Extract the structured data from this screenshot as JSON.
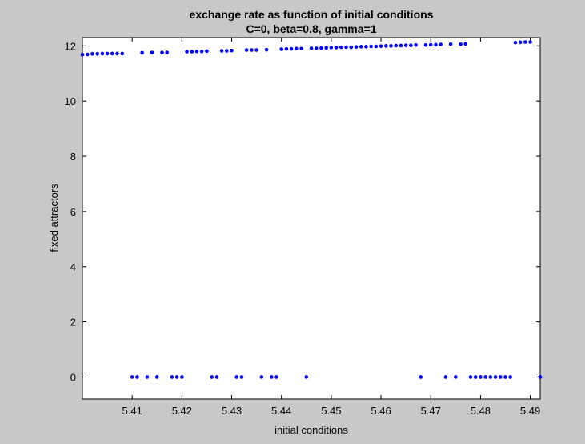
{
  "chart_data": {
    "type": "scatter",
    "title": [
      "exchange rate as function of initial conditions",
      "C=0, beta=0.8, gamma=1"
    ],
    "xlabel": "initial conditions",
    "ylabel": "fixed attractors",
    "xlim": [
      5.4,
      5.492
    ],
    "ylim": [
      -0.8,
      12.3
    ],
    "xticks": [
      5.41,
      5.42,
      5.43,
      5.44,
      5.45,
      5.46,
      5.47,
      5.48,
      5.49
    ],
    "yticks": [
      0,
      2,
      4,
      6,
      8,
      10,
      12
    ],
    "grid": false,
    "marker_color": "#0000ff",
    "series": [
      {
        "points": [
          [
            5.4,
            11.68
          ],
          [
            5.401,
            11.69
          ],
          [
            5.402,
            11.71
          ],
          [
            5.403,
            11.71
          ],
          [
            5.404,
            11.72
          ],
          [
            5.405,
            11.72
          ],
          [
            5.406,
            11.72
          ],
          [
            5.407,
            11.72
          ],
          [
            5.408,
            11.72
          ],
          [
            5.41,
            0
          ],
          [
            5.411,
            0
          ],
          [
            5.412,
            11.75
          ],
          [
            5.413,
            0
          ],
          [
            5.414,
            11.76
          ],
          [
            5.415,
            0
          ],
          [
            5.416,
            11.76
          ],
          [
            5.417,
            11.76
          ],
          [
            5.418,
            0
          ],
          [
            5.419,
            0
          ],
          [
            5.42,
            0
          ],
          [
            5.421,
            11.79
          ],
          [
            5.422,
            11.79
          ],
          [
            5.423,
            11.8
          ],
          [
            5.424,
            11.8
          ],
          [
            5.425,
            11.81
          ],
          [
            5.426,
            0
          ],
          [
            5.427,
            0
          ],
          [
            5.428,
            11.82
          ],
          [
            5.429,
            11.82
          ],
          [
            5.43,
            11.83
          ],
          [
            5.431,
            0
          ],
          [
            5.432,
            0
          ],
          [
            5.433,
            11.85
          ],
          [
            5.434,
            11.85
          ],
          [
            5.435,
            11.85
          ],
          [
            5.436,
            0
          ],
          [
            5.437,
            11.86
          ],
          [
            5.438,
            0
          ],
          [
            5.439,
            0
          ],
          [
            5.44,
            11.88
          ],
          [
            5.441,
            11.89
          ],
          [
            5.442,
            11.89
          ],
          [
            5.443,
            11.9
          ],
          [
            5.444,
            11.9
          ],
          [
            5.445,
            0
          ],
          [
            5.446,
            11.91
          ],
          [
            5.447,
            11.91
          ],
          [
            5.448,
            11.92
          ],
          [
            5.449,
            11.93
          ],
          [
            5.45,
            11.94
          ],
          [
            5.451,
            11.94
          ],
          [
            5.452,
            11.95
          ],
          [
            5.453,
            11.95
          ],
          [
            5.454,
            11.95
          ],
          [
            5.455,
            11.96
          ],
          [
            5.456,
            11.97
          ],
          [
            5.457,
            11.97
          ],
          [
            5.458,
            11.98
          ],
          [
            5.459,
            11.98
          ],
          [
            5.46,
            11.99
          ],
          [
            5.461,
            12.0
          ],
          [
            5.462,
            12.0
          ],
          [
            5.463,
            12.01
          ],
          [
            5.464,
            12.01
          ],
          [
            5.465,
            12.02
          ],
          [
            5.466,
            12.02
          ],
          [
            5.467,
            12.03
          ],
          [
            5.468,
            0
          ],
          [
            5.469,
            12.03
          ],
          [
            5.47,
            12.04
          ],
          [
            5.471,
            12.04
          ],
          [
            5.472,
            12.05
          ],
          [
            5.473,
            0
          ],
          [
            5.474,
            12.06
          ],
          [
            5.475,
            0
          ],
          [
            5.476,
            12.06
          ],
          [
            5.477,
            12.07
          ],
          [
            5.478,
            0
          ],
          [
            5.479,
            0
          ],
          [
            5.48,
            0
          ],
          [
            5.481,
            0
          ],
          [
            5.482,
            0
          ],
          [
            5.483,
            0
          ],
          [
            5.484,
            0
          ],
          [
            5.485,
            0
          ],
          [
            5.486,
            0
          ],
          [
            5.487,
            12.12
          ],
          [
            5.488,
            12.13
          ],
          [
            5.489,
            12.14
          ],
          [
            5.49,
            12.14
          ],
          [
            5.492,
            0
          ]
        ]
      }
    ]
  }
}
